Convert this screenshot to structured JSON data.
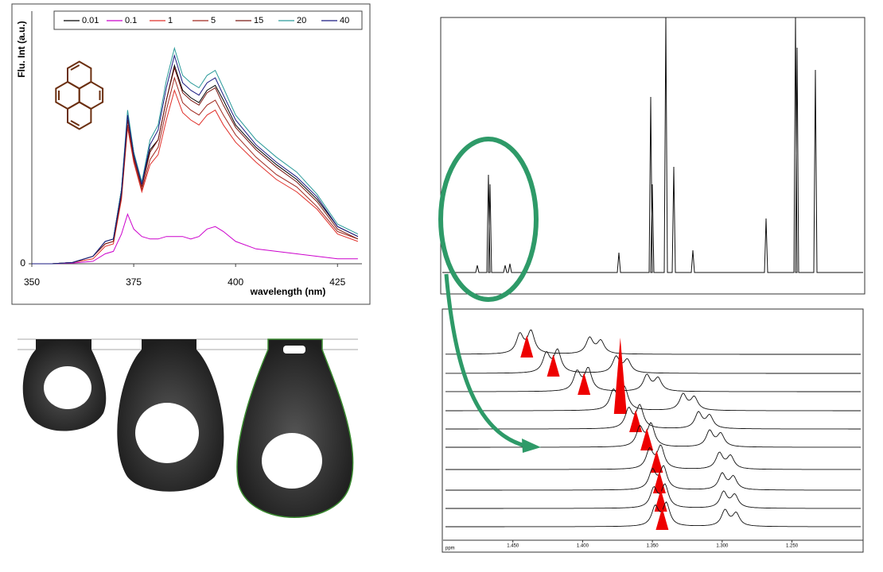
{
  "chart_data": [
    {
      "type": "line",
      "ylabel": "Flu. Int (a.u.)",
      "xlabel": "wavelength (nm)",
      "x": [
        350,
        355,
        360,
        365,
        368,
        370,
        372,
        373.5,
        375,
        377,
        379,
        381,
        383,
        385,
        387,
        389,
        391,
        393,
        395,
        397,
        400,
        405,
        410,
        415,
        420,
        425,
        430
      ],
      "xlim": [
        350,
        431
      ],
      "xticks": [
        350,
        375,
        400,
        425
      ],
      "ylim": [
        0,
        1
      ],
      "yticks": [
        0
      ],
      "legend": "top",
      "series": [
        {
          "name": "0.01",
          "color": "#000000",
          "values": [
            0,
            0,
            0.005,
            0.03,
            0.09,
            0.1,
            0.3,
            0.6,
            0.45,
            0.32,
            0.46,
            0.5,
            0.66,
            0.8,
            0.7,
            0.67,
            0.65,
            0.7,
            0.72,
            0.66,
            0.56,
            0.47,
            0.4,
            0.34,
            0.26,
            0.15,
            0.11
          ]
        },
        {
          "name": "0.1",
          "color": "#cc00cc",
          "values": [
            0,
            0,
            0.003,
            0.01,
            0.04,
            0.05,
            0.12,
            0.2,
            0.14,
            0.11,
            0.1,
            0.1,
            0.11,
            0.11,
            0.11,
            0.1,
            0.11,
            0.14,
            0.15,
            0.13,
            0.09,
            0.06,
            0.05,
            0.04,
            0.03,
            0.02,
            0.02
          ]
        },
        {
          "name": "1",
          "color": "#e0302a",
          "values": [
            0,
            0,
            0.005,
            0.02,
            0.07,
            0.08,
            0.26,
            0.55,
            0.41,
            0.29,
            0.4,
            0.44,
            0.58,
            0.7,
            0.61,
            0.58,
            0.56,
            0.6,
            0.62,
            0.56,
            0.49,
            0.41,
            0.34,
            0.29,
            0.22,
            0.12,
            0.09
          ]
        },
        {
          "name": "5",
          "color": "#a0281e",
          "values": [
            0,
            0,
            0.005,
            0.03,
            0.08,
            0.09,
            0.27,
            0.56,
            0.42,
            0.3,
            0.42,
            0.47,
            0.62,
            0.75,
            0.65,
            0.62,
            0.6,
            0.64,
            0.66,
            0.6,
            0.52,
            0.43,
            0.36,
            0.31,
            0.23,
            0.13,
            0.1
          ]
        },
        {
          "name": "15",
          "color": "#7a1a14",
          "values": [
            0,
            0,
            0.005,
            0.03,
            0.08,
            0.09,
            0.28,
            0.58,
            0.43,
            0.31,
            0.45,
            0.5,
            0.66,
            0.79,
            0.69,
            0.66,
            0.64,
            0.69,
            0.71,
            0.64,
            0.55,
            0.46,
            0.39,
            0.33,
            0.25,
            0.14,
            0.1
          ]
        },
        {
          "name": "20",
          "color": "#2a9a9a",
          "values": [
            0,
            0,
            0.005,
            0.03,
            0.09,
            0.1,
            0.3,
            0.62,
            0.45,
            0.33,
            0.5,
            0.56,
            0.74,
            0.87,
            0.76,
            0.73,
            0.71,
            0.76,
            0.78,
            0.71,
            0.6,
            0.5,
            0.43,
            0.37,
            0.28,
            0.16,
            0.12
          ]
        },
        {
          "name": "40",
          "color": "#1a1a80",
          "values": [
            0,
            0,
            0.005,
            0.03,
            0.09,
            0.1,
            0.29,
            0.6,
            0.44,
            0.32,
            0.48,
            0.54,
            0.71,
            0.84,
            0.73,
            0.7,
            0.68,
            0.73,
            0.75,
            0.68,
            0.58,
            0.48,
            0.41,
            0.35,
            0.27,
            0.15,
            0.11
          ]
        }
      ]
    },
    {
      "type": "stacked-spectra",
      "xlabel": "ppm",
      "xlim": [
        1.5,
        1.199
      ],
      "xticks": [
        {
          "value": 1.45,
          "label": "1.450"
        },
        {
          "value": 1.4,
          "label": "1.400"
        },
        {
          "value": 1.35,
          "label": "1.350"
        },
        {
          "value": 1.3,
          "label": "1.300"
        },
        {
          "value": 1.25,
          "label": "1.250"
        }
      ],
      "marker_color": "#ee0000",
      "values": [
        1.44,
        1.421,
        1.399,
        1.373,
        1.362,
        1.354,
        1.347,
        1.345,
        1.344,
        1.343
      ]
    }
  ]
}
